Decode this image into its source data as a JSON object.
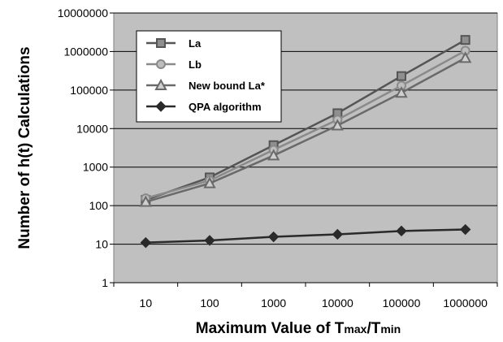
{
  "chart_data": {
    "type": "line",
    "title": "",
    "ylabel": "Number of h(t) Calculations",
    "xlabel": {
      "prefix": "Maximum Value of T",
      "sub1": "max",
      "mid": "/T",
      "sub2": "min"
    },
    "categories": [
      "10",
      "100",
      "1000",
      "10000",
      "100000",
      "1000000"
    ],
    "y_scale": "log",
    "ylim": [
      1,
      10000000
    ],
    "y_ticks": [
      "1",
      "10",
      "100",
      "1000",
      "10000",
      "100000",
      "1000000",
      "10000000"
    ],
    "grid": "horizontal",
    "legend_position": "top-left",
    "series": [
      {
        "name": "La",
        "values": [
          140,
          540,
          3700,
          25000,
          230000,
          2000000
        ],
        "color": "#555555",
        "marker": "square"
      },
      {
        "name": "Lb",
        "values": [
          155,
          450,
          2800,
          17000,
          130000,
          1050000
        ],
        "color": "#8a8a8a",
        "marker": "circle"
      },
      {
        "name": "New bound La*",
        "values": [
          125,
          380,
          2000,
          12000,
          85000,
          680000
        ],
        "color": "#6a6a6a",
        "marker": "triangle"
      },
      {
        "name": "QPA algorithm",
        "values": [
          11,
          12.5,
          15.5,
          18,
          22,
          24
        ],
        "color": "#2a2a2a",
        "marker": "diamond"
      }
    ],
    "colors": {
      "plot_background": "#c0c0c0",
      "gridline": "#000000",
      "legend_background": "#ffffff"
    }
  }
}
